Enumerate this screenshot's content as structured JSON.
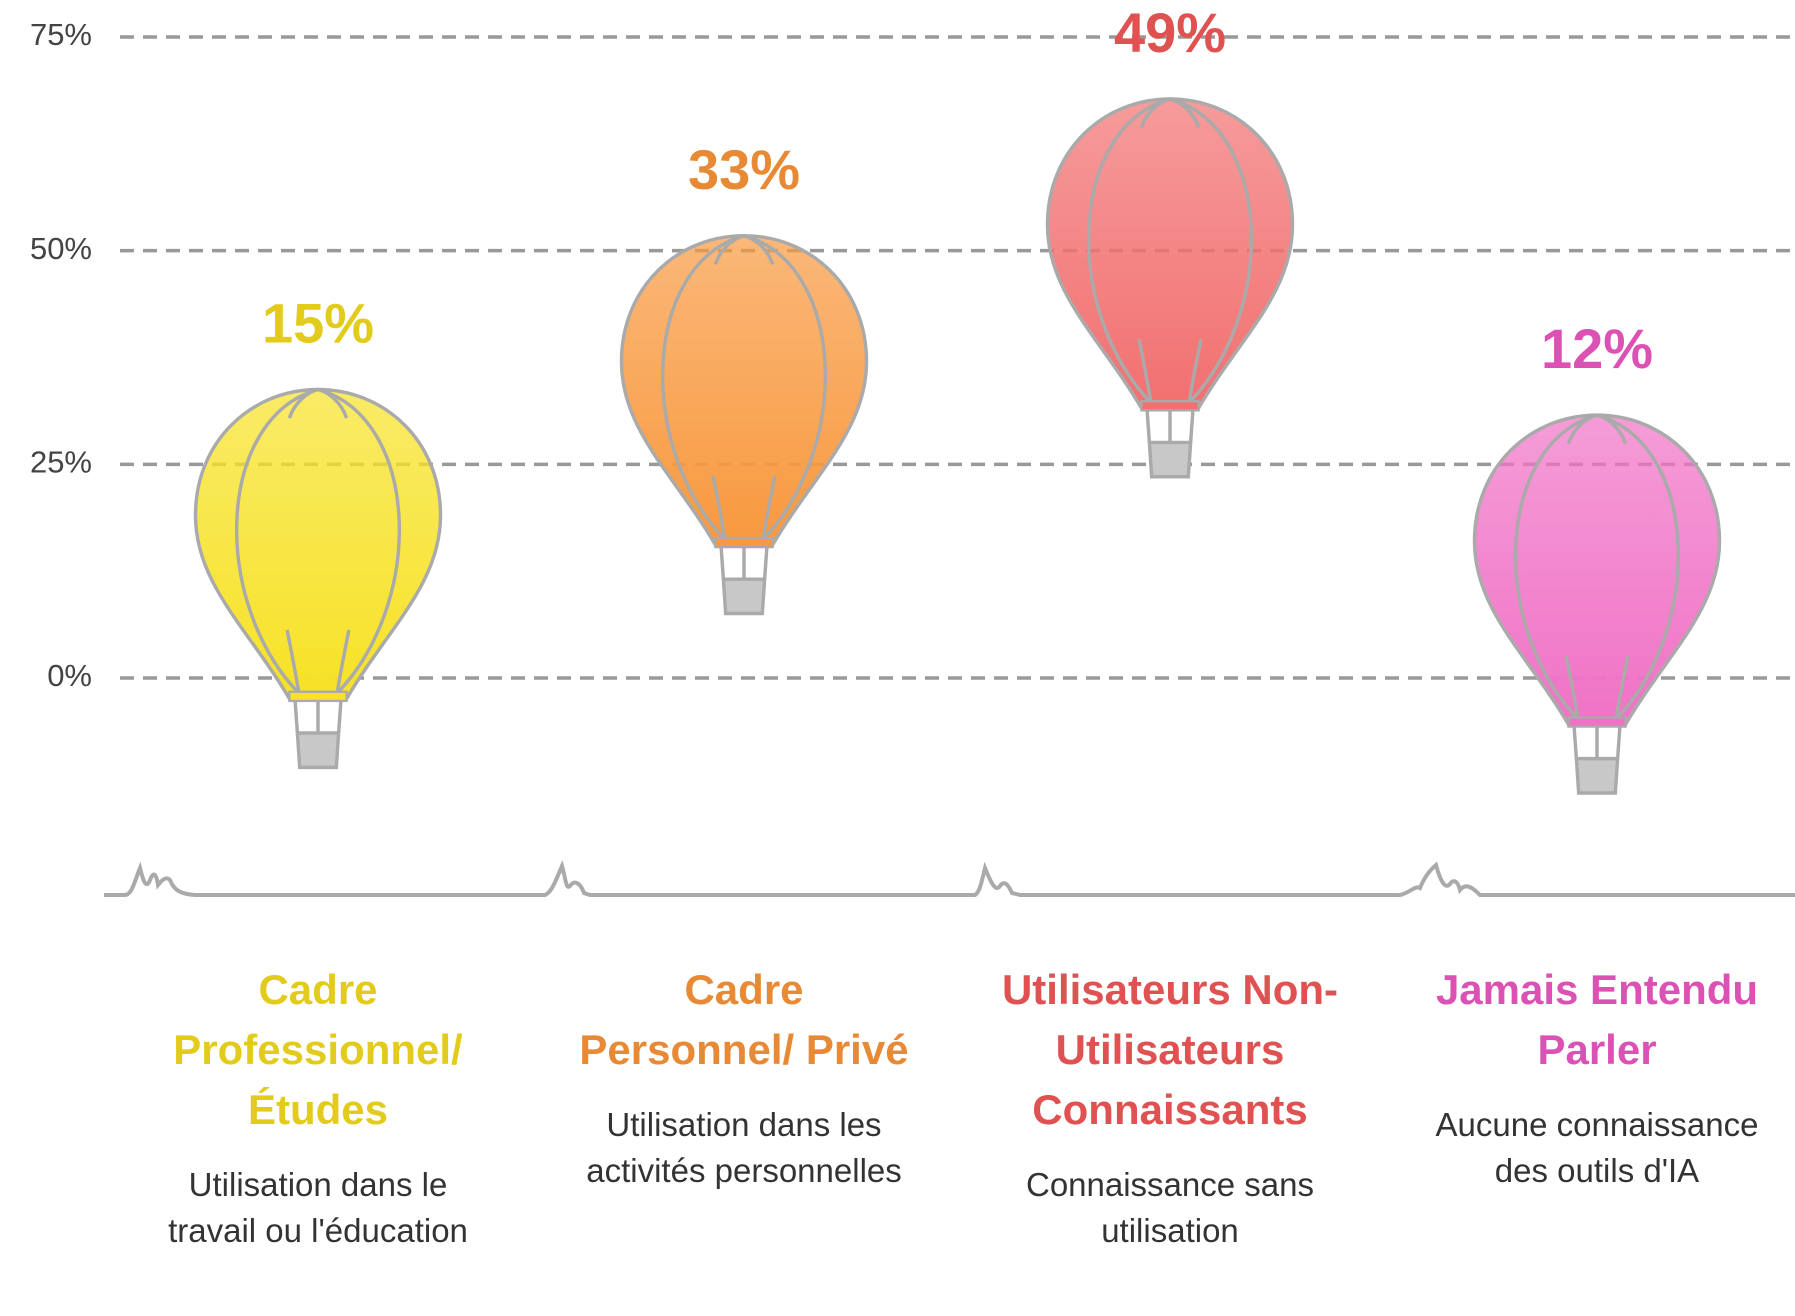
{
  "chart_data": {
    "type": "balloon",
    "categories": [
      "Cadre Professionnel/ Études",
      "Cadre Personnel/ Privé",
      "Utilisateurs Non-Utilisateurs Connaissants",
      "Jamais Entendu Parler"
    ],
    "descriptions": [
      "Utilisation dans le travail ou l'éducation",
      "Utilisation dans les activités personnelles",
      "Connaissance sans utilisation",
      "Aucune connaissance des outils d'IA"
    ],
    "values": [
      15,
      33,
      49,
      12
    ],
    "value_labels": [
      "15%",
      "33%",
      "49%",
      "12%"
    ],
    "colors": [
      "#f7e226",
      "#f8993f",
      "#f27070",
      "#f072c6"
    ],
    "label_colors": [
      "#e3cb1c",
      "#e88a35",
      "#e05252",
      "#dc52b4"
    ],
    "ylim": [
      0,
      75
    ],
    "yticks": [
      {
        "value": 0,
        "label": "0%"
      },
      {
        "value": 25,
        "label": "25%"
      },
      {
        "value": 50,
        "label": "50%"
      },
      {
        "value": 75,
        "label": "75%"
      }
    ],
    "grid": true
  }
}
